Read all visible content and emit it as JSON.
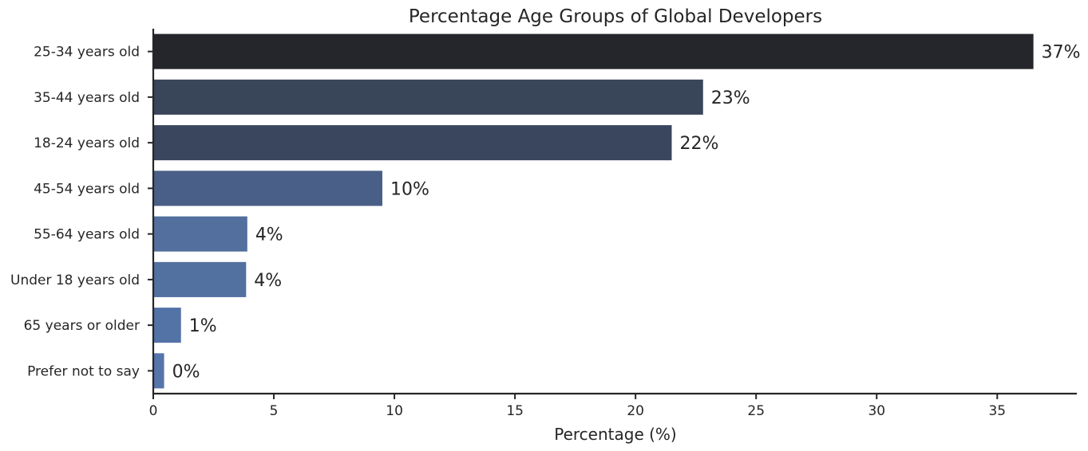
{
  "chart_data": {
    "type": "bar",
    "orientation": "horizontal",
    "title": "Percentage Age Groups of Global Developers",
    "xlabel": "Percentage (%)",
    "ylabel": "",
    "xlim": [
      0,
      38.3
    ],
    "xticks": [
      0,
      5,
      10,
      15,
      20,
      25,
      30,
      35
    ],
    "grid": false,
    "categories": [
      "25-34 years old",
      "35-44 years old",
      "18-24 years old",
      "45-54 years old",
      "55-64 years old",
      "Under 18 years old",
      "65 years or older",
      "Prefer not to say"
    ],
    "values": [
      36.5,
      22.8,
      21.5,
      9.5,
      3.9,
      3.85,
      1.15,
      0.45
    ],
    "data_labels": [
      "37%",
      "23%",
      "22%",
      "10%",
      "4%",
      "4%",
      "1%",
      "0%"
    ],
    "colors": [
      "#25262b",
      "#394559",
      "#3a465e",
      "#4a5f87",
      "#526f9d",
      "#5270a0",
      "#5373a6",
      "#5575ab"
    ]
  }
}
